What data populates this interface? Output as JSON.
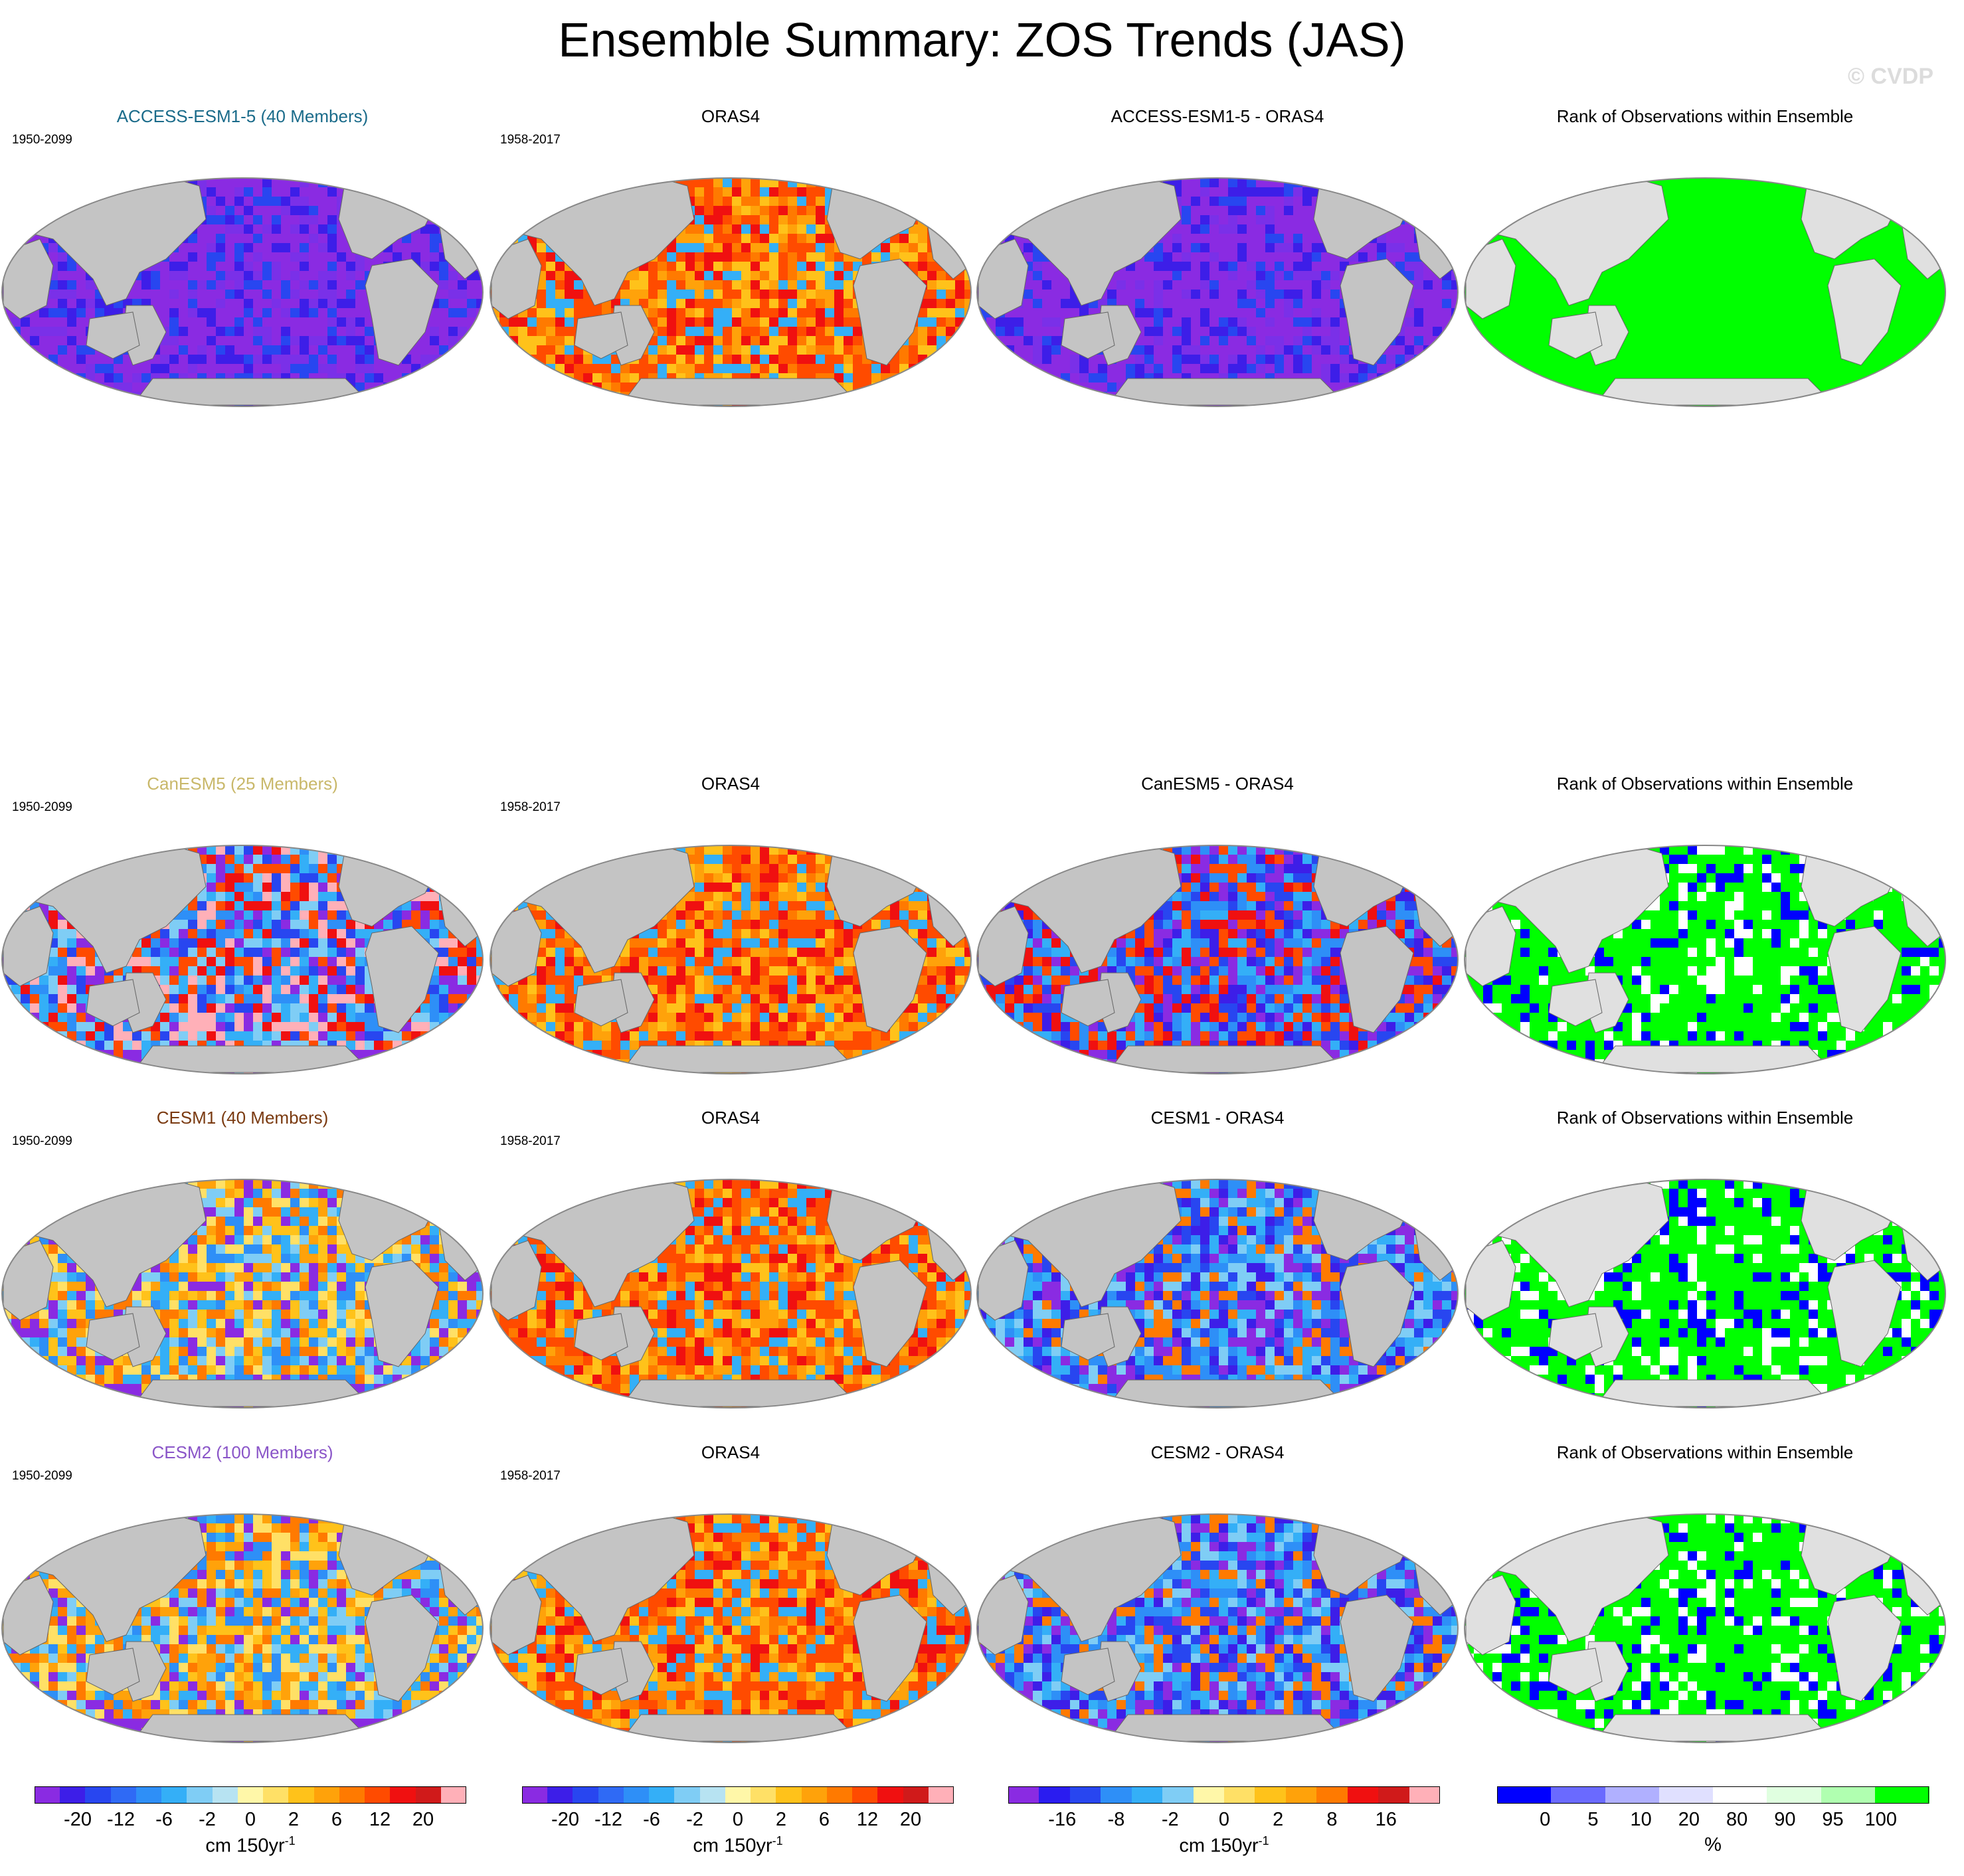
{
  "title": "Ensemble Summary: ZOS Trends (JAS)",
  "watermark": "© CVDP",
  "model_period": "1950-2099",
  "obs_period": "1958-2017",
  "obs_name": "ORAS4",
  "rank_title": "Rank of Observations within Ensemble",
  "rows": [
    {
      "model_title": "ACCESS-ESM1-5 (40 Members)",
      "model_color": "#1a6b8a",
      "diff_title": "ACCESS-ESM1-5 - ORAS4",
      "model_pattern": "strong_negative",
      "diff_pattern": "strong_negative",
      "rank_pattern": "all_high"
    },
    {
      "model_title": "CanESM5 (25 Members)",
      "model_color": "#c9b86a",
      "diff_title": "CanESM5 - ORAS4",
      "model_pattern": "mixed_canesm",
      "diff_pattern": "mixed_negative",
      "rank_pattern": "mixed_low"
    },
    {
      "model_title": "CESM1 (40 Members)",
      "model_color": "#7a3a10",
      "diff_title": "CESM1 - ORAS4",
      "model_pattern": "mixed_cesm",
      "diff_pattern": "blue_dominant",
      "rank_pattern": "mixed_low"
    },
    {
      "model_title": "CESM2 (100 Members)",
      "model_color": "#8a55c8",
      "diff_title": "CESM2 - ORAS4",
      "model_pattern": "mixed_cesm",
      "diff_pattern": "blue_dominant",
      "rank_pattern": "mixed_low"
    }
  ],
  "colorbars": [
    {
      "labels": [
        "-20",
        "-12",
        "-6",
        "-2",
        "0",
        "2",
        "6",
        "12",
        "20"
      ],
      "unit": "cm 150yr",
      "unit_sup": "-1",
      "colors": [
        "#8a2be2",
        "#3d1ee8",
        "#2846f0",
        "#2f6af5",
        "#2e8ff7",
        "#34aff7",
        "#7fcdf5",
        "#b7e3f2",
        "#fff7a8",
        "#ffe066",
        "#ffc21a",
        "#ffa20a",
        "#ff7a00",
        "#ff4b00",
        "#f01010",
        "#d01a1a",
        "#ffb0b8"
      ]
    },
    {
      "labels": [
        "-20",
        "-12",
        "-6",
        "-2",
        "0",
        "2",
        "6",
        "12",
        "20"
      ],
      "unit": "cm 150yr",
      "unit_sup": "-1",
      "colors": [
        "#8a2be2",
        "#3d1ee8",
        "#2846f0",
        "#2f6af5",
        "#2e8ff7",
        "#34aff7",
        "#7fcdf5",
        "#b7e3f2",
        "#fff7a8",
        "#ffe066",
        "#ffc21a",
        "#ffa20a",
        "#ff7a00",
        "#ff4b00",
        "#f01010",
        "#d01a1a",
        "#ffb0b8"
      ]
    },
    {
      "labels": [
        "-16",
        "-8",
        "-2",
        "0",
        "2",
        "8",
        "16"
      ],
      "unit": "cm 150yr",
      "unit_sup": "-1",
      "colors": [
        "#8a2be2",
        "#2a1cf0",
        "#2846f0",
        "#2e8ff7",
        "#34aff7",
        "#7fcdf5",
        "#fff7a8",
        "#ffe066",
        "#ffc21a",
        "#ffa20a",
        "#ff7a00",
        "#f01010",
        "#d01a1a",
        "#ffb0b8"
      ]
    },
    {
      "labels": [
        "0",
        "5",
        "10",
        "20",
        "80",
        "90",
        "95",
        "100"
      ],
      "unit": "%",
      "unit_sup": "",
      "colors": [
        "#0000ff",
        "#6a6aff",
        "#b0b0ff",
        "#e0e0ff",
        "#ffffff",
        "#e0ffe0",
        "#b0ffb0",
        "#00ff00"
      ]
    }
  ]
}
